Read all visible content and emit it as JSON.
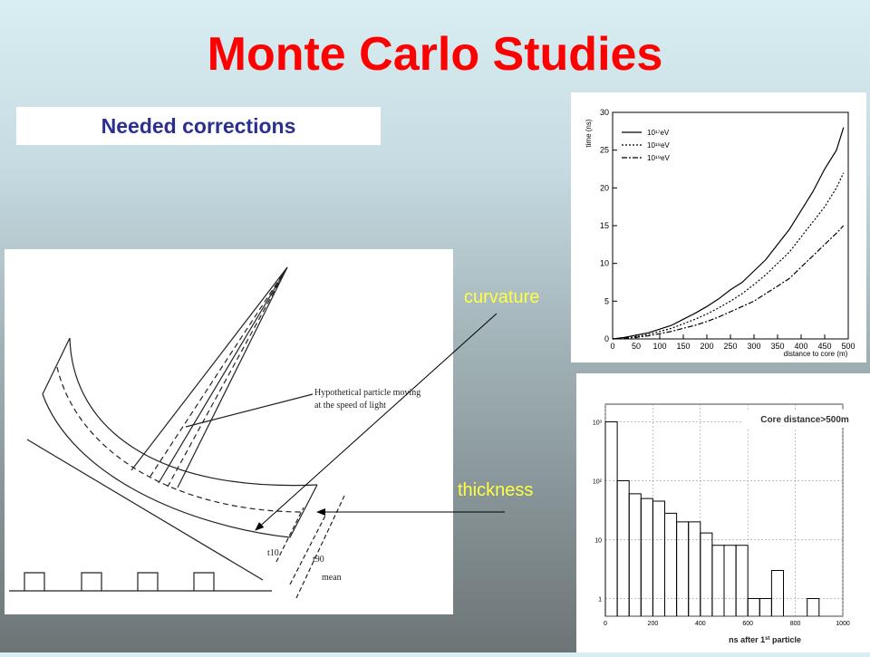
{
  "slide": {
    "title": "Monte Carlo Studies",
    "subtitle": "Needed corrections",
    "label_curvature": "curvature",
    "label_thickness": "thickness"
  },
  "diagram": {
    "annotation_line1": "Hypothetical particle moving",
    "annotation_line2": "at the speed of light",
    "t10": "t10",
    "t90": "t90",
    "mean": "mean"
  },
  "chart_data": [
    {
      "type": "line",
      "xlabel": "distance to core (m)",
      "ylabel": "time (ns)",
      "xlim": [
        0,
        500
      ],
      "ylim": [
        0,
        30
      ],
      "x_ticks": [
        "0",
        "50",
        "100",
        "150",
        "200",
        "250",
        "300",
        "350",
        "400",
        "450",
        "500"
      ],
      "y_ticks": [
        "0",
        "5",
        "10",
        "15",
        "20",
        "25",
        "30"
      ],
      "legend_position": "top-left",
      "series": [
        {
          "name": "10¹⁷eV",
          "style": "solid",
          "x": [
            0,
            25,
            50,
            75,
            100,
            125,
            150,
            175,
            200,
            225,
            250,
            275,
            300,
            325,
            350,
            375,
            400,
            425,
            450,
            475,
            490
          ],
          "values": [
            0,
            0.2,
            0.5,
            0.8,
            1.3,
            1.8,
            2.6,
            3.4,
            4.3,
            5.3,
            6.5,
            7.5,
            9,
            10.5,
            12.5,
            14.5,
            17,
            19.5,
            22.5,
            25,
            28
          ]
        },
        {
          "name": "10¹⁸eV",
          "style": "dotted",
          "x": [
            0,
            25,
            50,
            75,
            100,
            125,
            150,
            175,
            200,
            225,
            250,
            275,
            300,
            325,
            350,
            375,
            400,
            425,
            450,
            475,
            490
          ],
          "values": [
            0,
            0.1,
            0.3,
            0.6,
            1,
            1.4,
            2,
            2.6,
            3.3,
            4.1,
            5,
            6,
            7.2,
            8.5,
            10,
            11.5,
            13.5,
            15.5,
            17.5,
            20,
            22
          ]
        },
        {
          "name": "10¹⁹eV",
          "style": "dashdot",
          "x": [
            0,
            25,
            50,
            75,
            100,
            125,
            150,
            175,
            200,
            225,
            250,
            275,
            300,
            325,
            350,
            375,
            400,
            425,
            450,
            475,
            490
          ],
          "values": [
            0,
            0.1,
            0.2,
            0.4,
            0.7,
            1,
            1.4,
            1.8,
            2.3,
            2.9,
            3.6,
            4.3,
            5,
            6,
            7,
            8,
            9.5,
            11,
            12.5,
            14,
            15
          ]
        }
      ]
    },
    {
      "type": "bar",
      "title": "Core distance>500m",
      "xlabel": "ns after 1st particle",
      "xlabel_main": "ns after 1",
      "xlabel_sup": "st",
      "xlabel_tail": " particle",
      "xlim": [
        0,
        1000
      ],
      "y_scale": "log",
      "ylim": [
        0.5,
        2000
      ],
      "x_ticks": [
        "0",
        "200",
        "400",
        "600",
        "800",
        "1000"
      ],
      "y_ticks": [
        "1",
        "10",
        "10²",
        "10³"
      ],
      "bin_width": 50,
      "bins": [
        0,
        50,
        100,
        150,
        200,
        250,
        300,
        350,
        400,
        450,
        500,
        550,
        600,
        650,
        700,
        750,
        800,
        850,
        900,
        950
      ],
      "values": [
        1000,
        100,
        60,
        50,
        45,
        28,
        20,
        20,
        13,
        8,
        8,
        8,
        1,
        1,
        3,
        0,
        0,
        1,
        0,
        0
      ]
    }
  ]
}
